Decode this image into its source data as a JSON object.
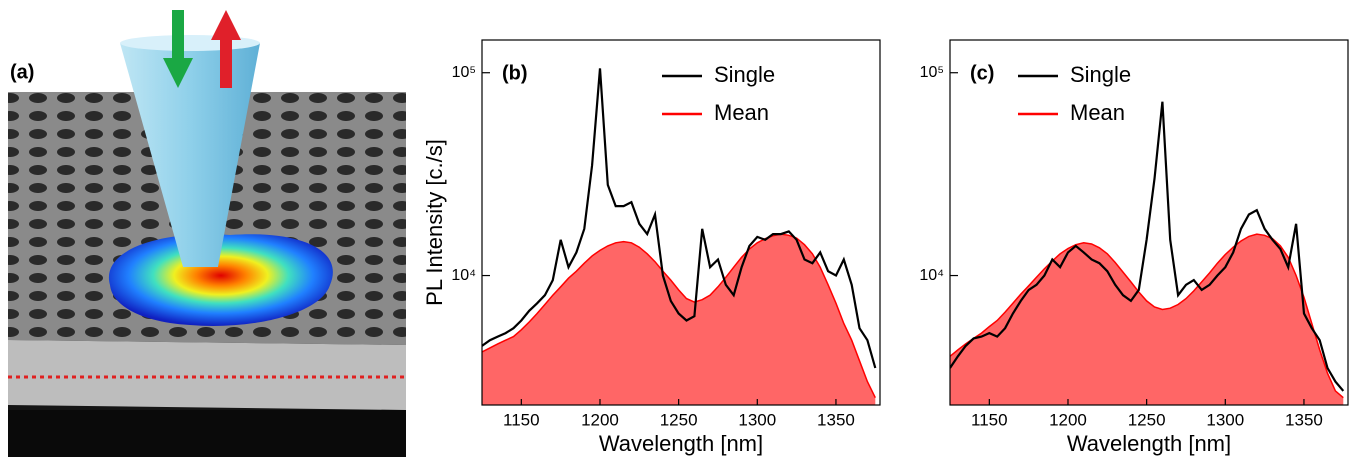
{
  "panel_a": {
    "label": "(a)"
  },
  "chart_data": [
    {
      "type": "line",
      "panel_label": "(b)",
      "xlabel": "Wavelength [nm]",
      "ylabel": "PL Intensity [c./s]",
      "xlim": [
        1125,
        1378
      ],
      "xticks": [
        1150,
        1200,
        1250,
        1300,
        1350
      ],
      "ylim": [
        2300,
        145000
      ],
      "yticks": [
        {
          "value": 10000,
          "label": "10⁴"
        },
        {
          "value": 100000,
          "label": "10⁵"
        }
      ],
      "log_y": true,
      "legend": "upper right",
      "x": [
        1125,
        1130,
        1135,
        1140,
        1145,
        1150,
        1155,
        1160,
        1165,
        1170,
        1175,
        1180,
        1185,
        1190,
        1195,
        1200,
        1205,
        1210,
        1215,
        1220,
        1225,
        1230,
        1235,
        1240,
        1245,
        1250,
        1255,
        1260,
        1265,
        1270,
        1275,
        1280,
        1285,
        1290,
        1295,
        1300,
        1305,
        1310,
        1315,
        1320,
        1325,
        1330,
        1335,
        1340,
        1345,
        1350,
        1355,
        1360,
        1365,
        1370,
        1375
      ],
      "series": [
        {
          "name": "Single",
          "color": "#000000",
          "style": "line",
          "values": [
            4500,
            4800,
            5000,
            5200,
            5500,
            6000,
            6700,
            7300,
            8000,
            9500,
            15000,
            11000,
            13000,
            17000,
            35000,
            105000,
            28000,
            22000,
            22000,
            23000,
            18000,
            16000,
            20000,
            10000,
            7500,
            6500,
            6000,
            6300,
            17000,
            11000,
            12000,
            9000,
            8000,
            11000,
            14000,
            15500,
            15000,
            16000,
            16000,
            16500,
            15000,
            12000,
            11500,
            13000,
            10500,
            10000,
            12000,
            9000,
            5500,
            4800,
            3500
          ]
        },
        {
          "name": "Mean",
          "color": "#ff0000",
          "style": "area",
          "values": [
            4200,
            4400,
            4600,
            4800,
            5000,
            5400,
            5900,
            6500,
            7200,
            8000,
            8800,
            9700,
            10500,
            11500,
            12500,
            13300,
            14000,
            14500,
            14700,
            14500,
            13800,
            12800,
            11700,
            10500,
            9500,
            8500,
            7700,
            7400,
            7600,
            8000,
            8800,
            9800,
            11000,
            12300,
            13500,
            14500,
            15200,
            15700,
            16000,
            15800,
            15300,
            14200,
            12800,
            11000,
            9000,
            7300,
            5800,
            4800,
            3800,
            3000,
            2500
          ]
        }
      ]
    },
    {
      "type": "line",
      "panel_label": "(c)",
      "xlabel": "Wavelength [nm]",
      "xlim": [
        1125,
        1378
      ],
      "xticks": [
        1150,
        1200,
        1250,
        1300,
        1350
      ],
      "ylim": [
        2300,
        145000
      ],
      "yticks": [
        {
          "value": 10000,
          "label": "10⁴"
        },
        {
          "value": 100000,
          "label": "10⁵"
        }
      ],
      "log_y": true,
      "legend": "upper left",
      "x": [
        1125,
        1130,
        1135,
        1140,
        1145,
        1150,
        1155,
        1160,
        1165,
        1170,
        1175,
        1180,
        1185,
        1190,
        1195,
        1200,
        1205,
        1210,
        1215,
        1220,
        1225,
        1230,
        1235,
        1240,
        1245,
        1250,
        1255,
        1260,
        1265,
        1270,
        1275,
        1280,
        1285,
        1290,
        1295,
        1300,
        1305,
        1310,
        1315,
        1320,
        1325,
        1330,
        1335,
        1340,
        1345,
        1350,
        1355,
        1360,
        1365,
        1370,
        1375
      ],
      "series": [
        {
          "name": "Single",
          "color": "#000000",
          "style": "line",
          "values": [
            3500,
            4000,
            4500,
            4900,
            5000,
            5200,
            5000,
            5500,
            6500,
            7500,
            8500,
            9000,
            10000,
            12000,
            11000,
            13000,
            14000,
            13000,
            12000,
            11500,
            10500,
            9000,
            8000,
            7500,
            8500,
            15000,
            30000,
            72000,
            15000,
            8000,
            9000,
            9500,
            8500,
            9000,
            10000,
            11000,
            13000,
            17000,
            20000,
            21000,
            17000,
            15000,
            13500,
            11000,
            18000,
            6500,
            5500,
            4800,
            3500,
            3000,
            2700
          ]
        },
        {
          "name": "Mean",
          "color": "#ff0000",
          "style": "area",
          "values": [
            4000,
            4300,
            4600,
            4900,
            5200,
            5600,
            6000,
            6600,
            7300,
            8100,
            8900,
            9800,
            10800,
            11800,
            12800,
            13600,
            14200,
            14500,
            14300,
            13700,
            12800,
            11600,
            10400,
            9300,
            8300,
            7500,
            7000,
            6800,
            6900,
            7200,
            7700,
            8400,
            9300,
            10300,
            11500,
            12700,
            13800,
            14800,
            15600,
            16000,
            15800,
            15200,
            14000,
            12300,
            10000,
            7800,
            5800,
            4300,
            3300,
            2700,
            2500
          ]
        }
      ]
    }
  ]
}
